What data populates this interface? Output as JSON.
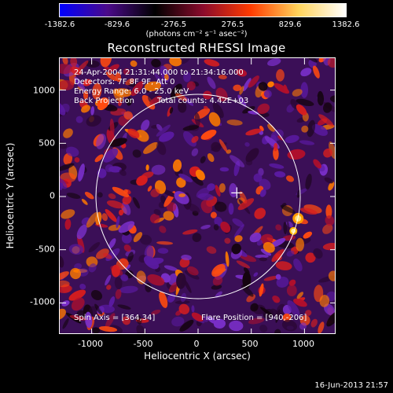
{
  "colorbar": {
    "tick_labels": [
      "-1382.6",
      "-829.6",
      "-276.5",
      "276.5",
      "829.6",
      "1382.6"
    ],
    "units": "(photons cm⁻² s⁻¹ asec⁻²)"
  },
  "title": "Reconstructed RHESSI Image",
  "annotations": {
    "time_range": "24-Apr-2004 21:31:44.000 to 21:34:16.000",
    "detectors": "Detectors: 7F 8F 9F, Att 0",
    "energy_range": "Energy Range: 6.0 - 25.0 keV",
    "method": "Back Projection",
    "total_counts": "Total counts: 4.42E+03",
    "spin_axis": "Spin Axis = [364,34]",
    "flare_position": "Flare Position = [940,-206]"
  },
  "axes": {
    "xlabel": "Heliocentric X (arcsec)",
    "ylabel": "Heliocentric Y (arcsec)",
    "x_ticks": [
      "-1000",
      "-500",
      "0",
      "500",
      "1000"
    ],
    "y_ticks": [
      "1000",
      "500",
      "0",
      "-500",
      "-1000"
    ],
    "xlim": [
      -1300,
      1300
    ],
    "ylim": [
      -1300,
      1300
    ]
  },
  "solar_disk": {
    "radius_arcsec": 960,
    "center": [
      0,
      0
    ]
  },
  "cross_marker": [
    364,
    34
  ],
  "footer": "16-Jun-2013 21:57",
  "colors": {
    "colormap": [
      "#0000ff",
      "#4b0a8a",
      "#000000",
      "#8a0b2c",
      "#ff3b00",
      "#ffd35a",
      "#ffffff"
    ],
    "axis": "#ffffff",
    "text": "#ffffff"
  }
}
